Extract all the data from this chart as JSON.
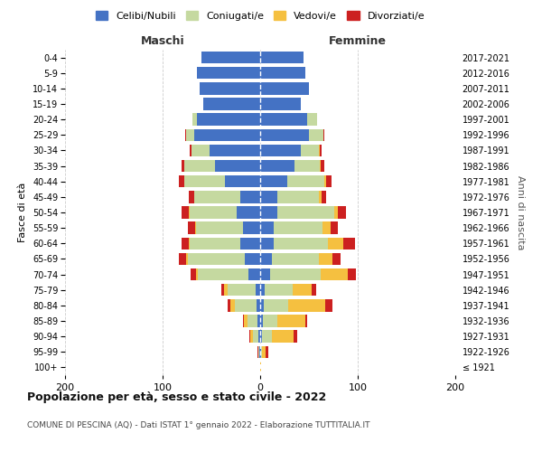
{
  "age_groups": [
    "100+",
    "95-99",
    "90-94",
    "85-89",
    "80-84",
    "75-79",
    "70-74",
    "65-69",
    "60-64",
    "55-59",
    "50-54",
    "45-49",
    "40-44",
    "35-39",
    "30-34",
    "25-29",
    "20-24",
    "15-19",
    "10-14",
    "5-9",
    "0-4"
  ],
  "birth_years": [
    "≤ 1921",
    "1922-1926",
    "1927-1931",
    "1932-1936",
    "1937-1941",
    "1942-1946",
    "1947-1951",
    "1952-1956",
    "1957-1961",
    "1962-1966",
    "1967-1971",
    "1972-1976",
    "1977-1981",
    "1982-1986",
    "1987-1991",
    "1992-1996",
    "1997-2001",
    "2002-2006",
    "2007-2011",
    "2012-2016",
    "2017-2021"
  ],
  "maschi": {
    "celibe": [
      0,
      1,
      2,
      3,
      4,
      5,
      12,
      16,
      20,
      18,
      24,
      20,
      36,
      46,
      52,
      68,
      65,
      58,
      62,
      65,
      60
    ],
    "coniugato": [
      0,
      1,
      5,
      10,
      22,
      28,
      52,
      58,
      52,
      48,
      48,
      48,
      42,
      32,
      18,
      8,
      4,
      0,
      0,
      0,
      0
    ],
    "vedovo": [
      0,
      0,
      3,
      4,
      5,
      4,
      2,
      2,
      1,
      1,
      1,
      0,
      0,
      0,
      0,
      0,
      0,
      0,
      0,
      0,
      0
    ],
    "divorziato": [
      0,
      1,
      1,
      1,
      2,
      3,
      5,
      7,
      8,
      7,
      8,
      5,
      5,
      3,
      2,
      1,
      0,
      0,
      0,
      0,
      0
    ]
  },
  "femmine": {
    "nubile": [
      0,
      1,
      2,
      3,
      4,
      5,
      10,
      12,
      14,
      14,
      18,
      18,
      28,
      35,
      42,
      50,
      48,
      42,
      50,
      46,
      44
    ],
    "coniugata": [
      0,
      1,
      10,
      15,
      25,
      28,
      52,
      48,
      55,
      50,
      58,
      42,
      38,
      26,
      18,
      15,
      10,
      0,
      0,
      0,
      0
    ],
    "vedova": [
      1,
      4,
      22,
      28,
      38,
      20,
      28,
      14,
      16,
      8,
      4,
      3,
      2,
      1,
      1,
      0,
      0,
      0,
      0,
      0,
      0
    ],
    "divorziata": [
      0,
      2,
      4,
      2,
      7,
      4,
      8,
      8,
      12,
      8,
      8,
      5,
      5,
      4,
      2,
      1,
      0,
      0,
      0,
      0,
      0
    ]
  },
  "colors": {
    "celibe": "#4472C4",
    "coniugato": "#C5D9A0",
    "vedovo": "#F5C040",
    "divorziato": "#CC2020"
  },
  "legend_labels": [
    "Celibi/Nubili",
    "Coniugati/e",
    "Vedovi/e",
    "Divorziati/e"
  ],
  "title": "Popolazione per età, sesso e stato civile - 2022",
  "subtitle": "COMUNE DI PESCINA (AQ) - Dati ISTAT 1° gennaio 2022 - Elaborazione TUTTITALIA.IT",
  "xlabel_left": "Maschi",
  "xlabel_right": "Femmine",
  "ylabel_left": "Fasce di età",
  "ylabel_right": "Anni di nascita",
  "xlim": 200,
  "bg_color": "#ffffff",
  "grid_color": "#cccccc"
}
